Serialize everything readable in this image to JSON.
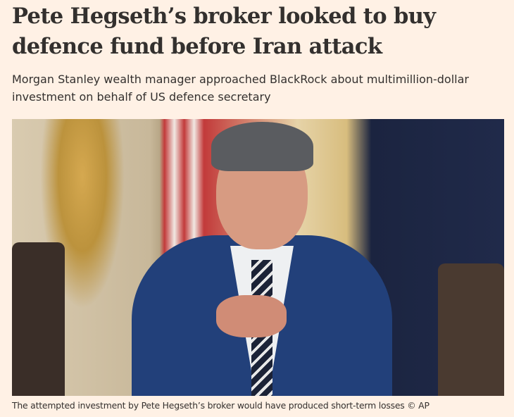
{
  "article": {
    "headline": "Pete Hegseth’s broker looked to buy defence fund before Iran attack",
    "standfirst": "Morgan Stanley wealth manager approached BlackRock about multimillion-dollar investment on behalf of US defence secretary",
    "image": {
      "alt": "Pete Hegseth pointing",
      "caption": "The attempted investment by Pete Hegseth’s broker would have produced short-term losses © AP"
    }
  },
  "colors": {
    "background": "#fff1e5",
    "text": "#33302e"
  }
}
